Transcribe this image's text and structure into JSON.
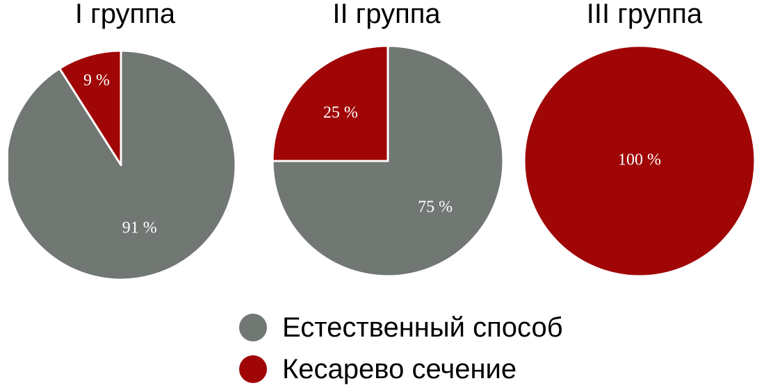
{
  "colors": {
    "natural": "#717773",
    "cesarean": "#a00606"
  },
  "chart_data": [
    {
      "type": "pie",
      "title": "I группа",
      "slices": [
        {
          "category": "Кесарево сечение",
          "value": 9,
          "label": "9 %"
        },
        {
          "category": "Естественный способ",
          "value": 91,
          "label": "91 %"
        }
      ]
    },
    {
      "type": "pie",
      "title": "II группа",
      "slices": [
        {
          "category": "Кесарево сечение",
          "value": 25,
          "label": "25 %"
        },
        {
          "category": "Естественный способ",
          "value": 75,
          "label": "75 %"
        }
      ]
    },
    {
      "type": "pie",
      "title": "III группа",
      "slices": [
        {
          "category": "Кесарево сечение",
          "value": 100,
          "label": "100 %"
        }
      ]
    }
  ],
  "legend": [
    {
      "label": "Естественный способ",
      "color": "#717773"
    },
    {
      "label": "Кесарево сечение",
      "color": "#a00606"
    }
  ]
}
